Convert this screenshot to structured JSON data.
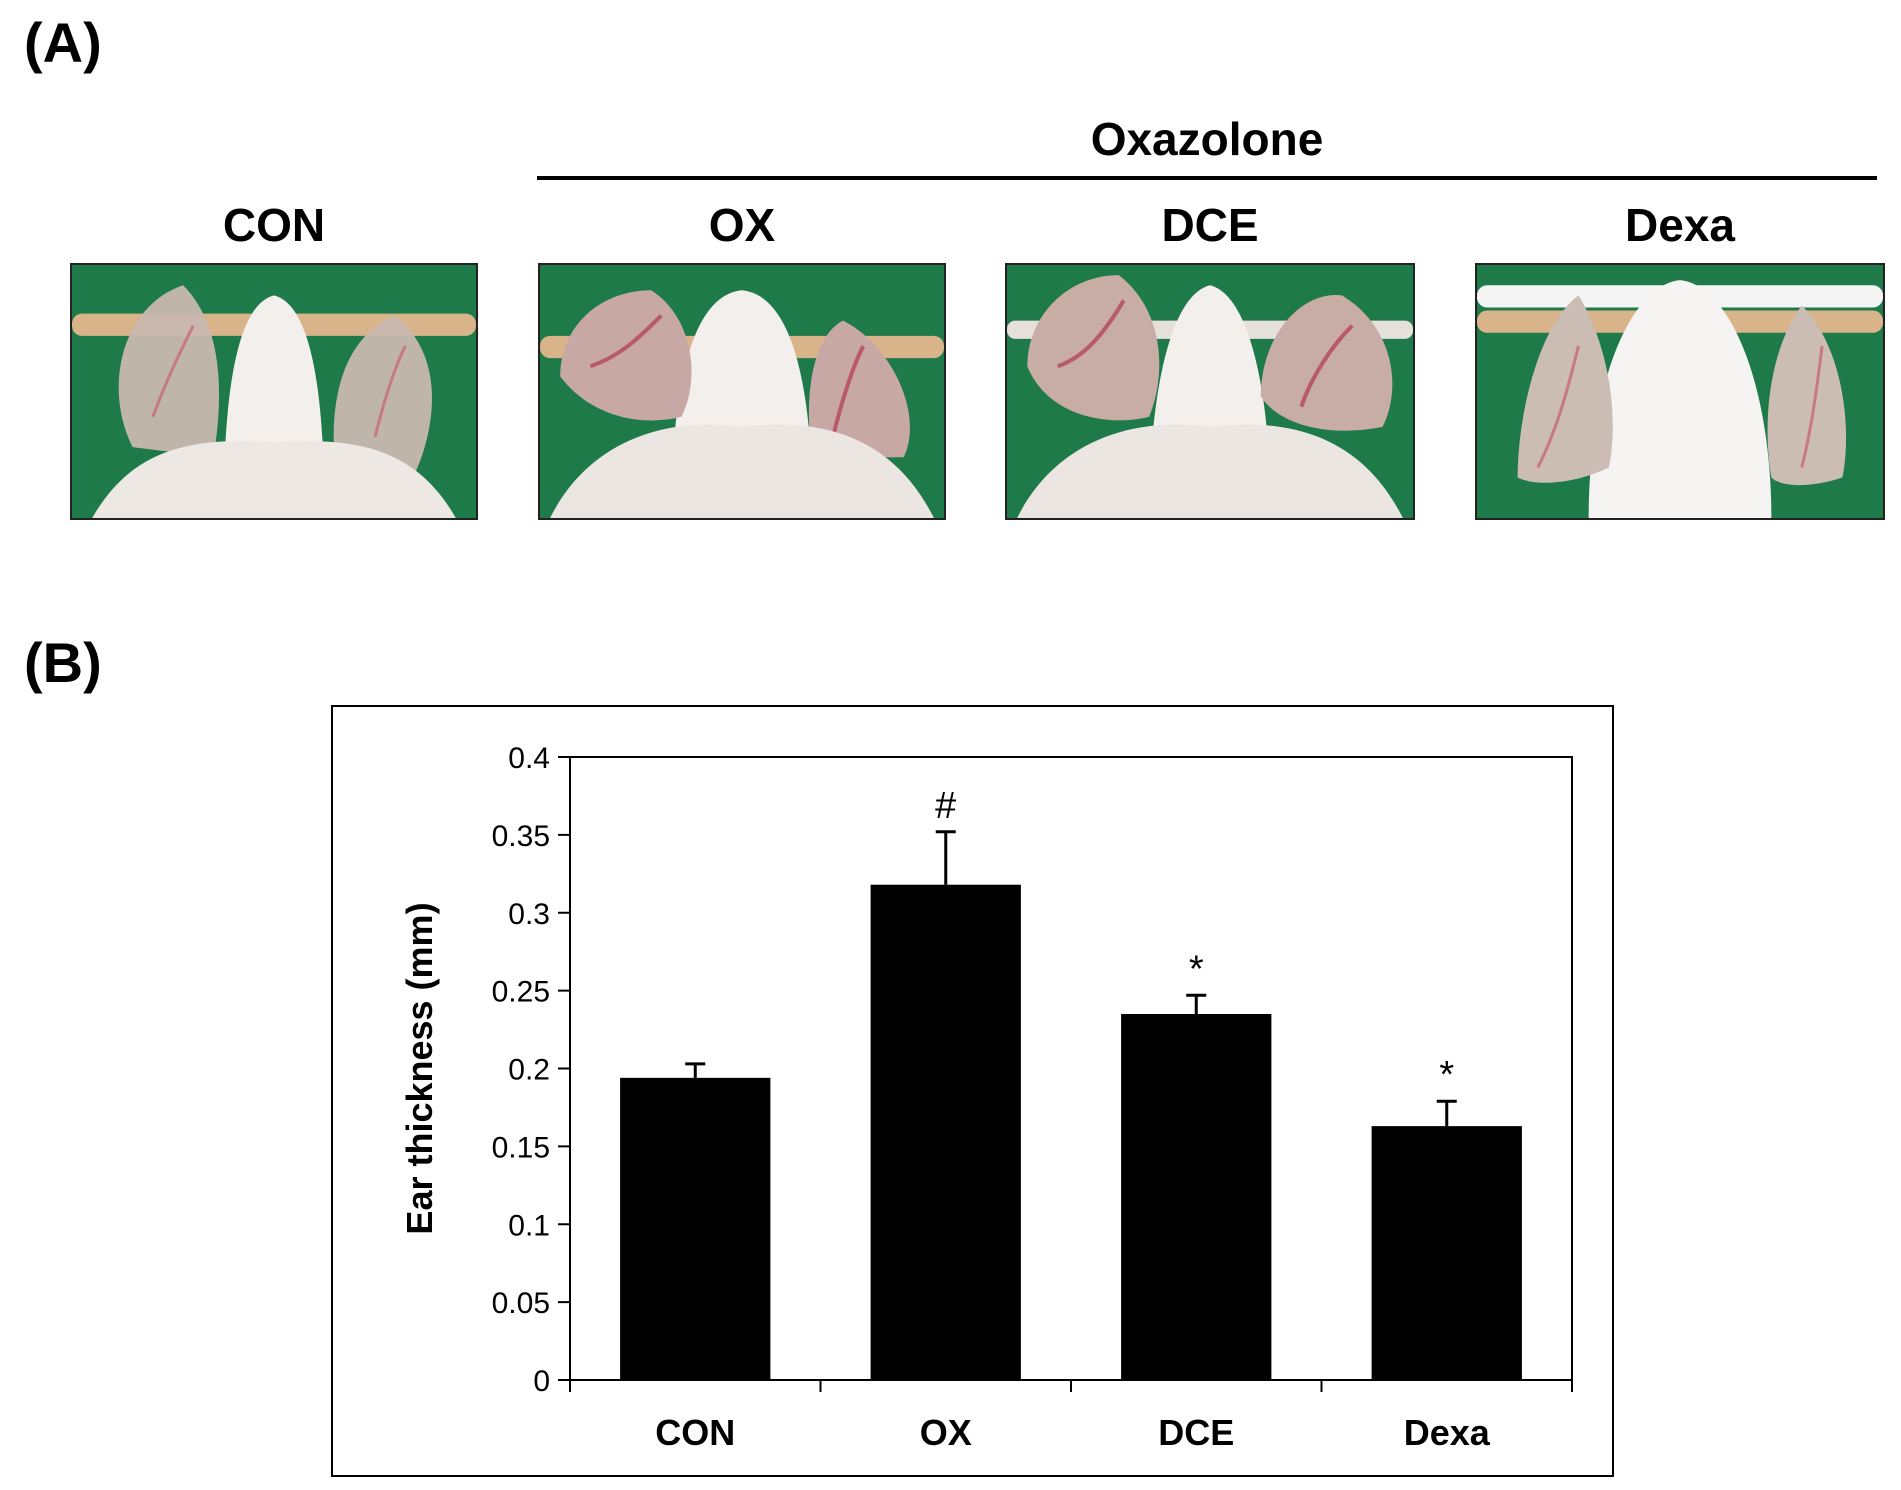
{
  "panel_a": {
    "label": "(A)",
    "group_label": "Oxazolone",
    "photos": [
      {
        "label": "CON"
      },
      {
        "label": "OX"
      },
      {
        "label": "DCE"
      },
      {
        "label": "Dexa"
      }
    ]
  },
  "panel_b": {
    "label": "(B)"
  },
  "chart_data": {
    "type": "bar",
    "title": "",
    "xlabel": "",
    "ylabel": "Ear thickness (mm)",
    "ylim": [
      0,
      0.4
    ],
    "yticks": [
      "0",
      "0.05",
      "0.1",
      "0.15",
      "0.2",
      "0.25",
      "0.3",
      "0.35",
      "0.4"
    ],
    "categories": [
      "CON",
      "OX",
      "DCE",
      "Dexa"
    ],
    "values": [
      0.194,
      0.318,
      0.235,
      0.163
    ],
    "errors": [
      0.009,
      0.034,
      0.012,
      0.016
    ],
    "annotations": [
      "",
      "#",
      "*",
      "*"
    ],
    "bar_color": "#000000",
    "grid": false,
    "legend": "none"
  }
}
